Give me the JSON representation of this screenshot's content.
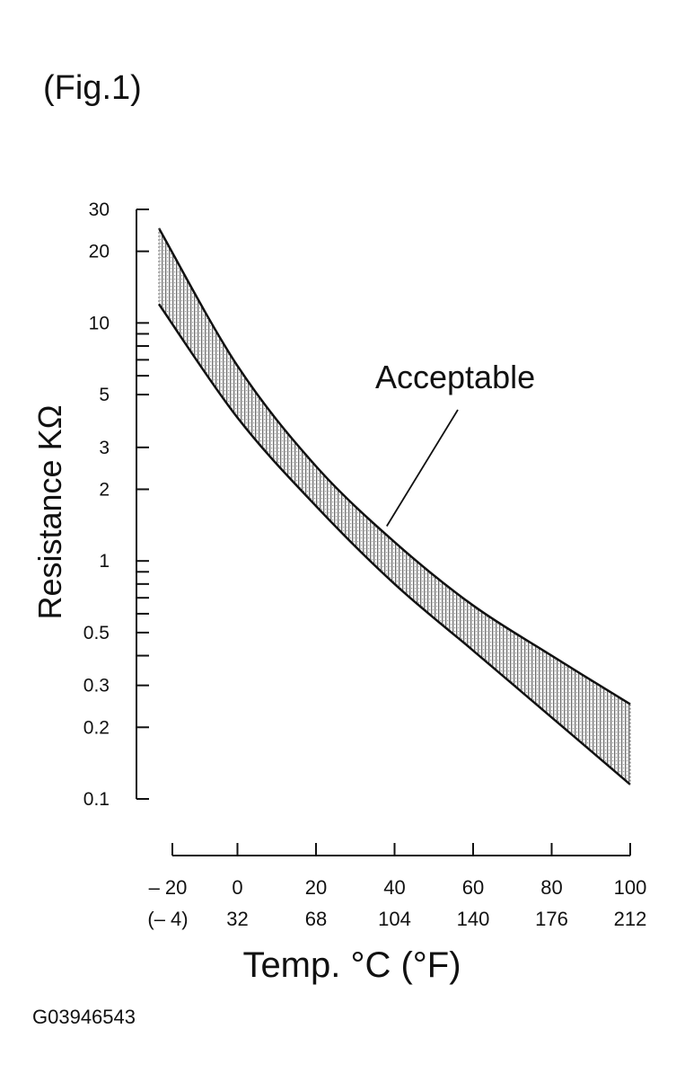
{
  "chart_data": {
    "type": "area",
    "figure_label": "(Fig.1)",
    "ylabel": "Resistance KΩ",
    "xlabel": "Temp. °C (°F)",
    "y_scale": "log",
    "ylim": [
      0.1,
      30
    ],
    "xlim": [
      -20,
      100
    ],
    "y_tick_labels": [
      {
        "value": 30,
        "label": "30"
      },
      {
        "value": 20,
        "label": "20"
      },
      {
        "value": 10,
        "label": "10"
      },
      {
        "value": 5,
        "label": "5"
      },
      {
        "value": 3,
        "label": "3"
      },
      {
        "value": 2,
        "label": "2"
      },
      {
        "value": 1,
        "label": "1"
      },
      {
        "value": 0.5,
        "label": "0.5"
      },
      {
        "value": 0.3,
        "label": "0.3"
      },
      {
        "value": 0.2,
        "label": "0.2"
      },
      {
        "value": 0.1,
        "label": "0.1"
      }
    ],
    "y_minor_ticks": [
      9,
      8,
      7,
      6,
      0.9,
      0.8,
      0.7,
      0.6,
      0.4
    ],
    "x_ticks": [
      {
        "c": -20,
        "c_label": "– 20",
        "f_label": "(– 4)"
      },
      {
        "c": 0,
        "c_label": "0",
        "f_label": "32"
      },
      {
        "c": 20,
        "c_label": "20",
        "f_label": "68"
      },
      {
        "c": 40,
        "c_label": "40",
        "f_label": "104"
      },
      {
        "c": 60,
        "c_label": "60",
        "f_label": "140"
      },
      {
        "c": 80,
        "c_label": "80",
        "f_label": "176"
      },
      {
        "c": 100,
        "c_label": "100",
        "f_label": "212"
      }
    ],
    "series": [
      {
        "role": "upper",
        "x": [
          -20,
          0,
          20,
          40,
          60,
          80,
          100
        ],
        "y": [
          25.0,
          6.6,
          2.5,
          1.2,
          0.65,
          0.4,
          0.25
        ]
      },
      {
        "role": "lower",
        "x": [
          -20,
          0,
          20,
          40,
          60,
          80,
          100
        ],
        "y": [
          12.0,
          4.0,
          1.7,
          0.8,
          0.42,
          0.22,
          0.115
        ]
      }
    ],
    "annotation": {
      "text": "Acceptable",
      "points_to": {
        "x": 38,
        "y": 1.4
      }
    },
    "grid": false,
    "legend": "none",
    "band_color": "#555555",
    "line_color": "#111111"
  },
  "footer": {
    "code": "G03946543"
  }
}
